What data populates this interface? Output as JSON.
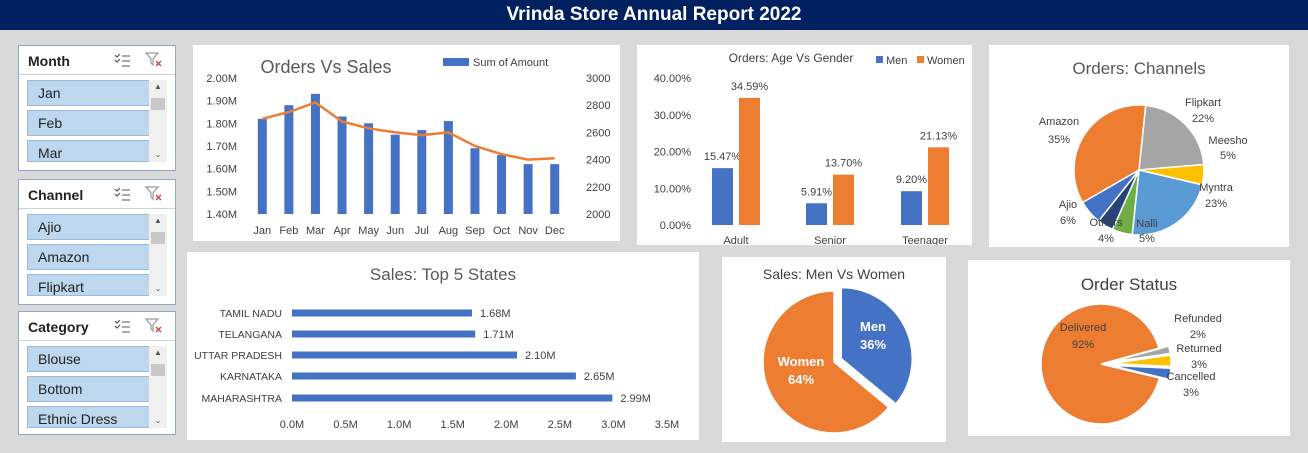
{
  "title": "Vrinda Store Annual Report 2022",
  "slicers": [
    {
      "header": "Month",
      "items": [
        "Jan",
        "Feb",
        "Mar"
      ]
    },
    {
      "header": "Channel",
      "items": [
        "Ajio",
        "Amazon",
        "Flipkart"
      ]
    },
    {
      "header": "Category",
      "items": [
        "Blouse",
        "Bottom",
        "Ethnic Dress"
      ]
    }
  ],
  "chart_data": [
    {
      "id": "orders_vs_sales",
      "type": "bar",
      "title": "Orders Vs Sales",
      "legend": "Sum of Amount",
      "legend_position": "top-right",
      "categories": [
        "Jan",
        "Feb",
        "Mar",
        "Apr",
        "May",
        "Jun",
        "Jul",
        "Aug",
        "Sep",
        "Oct",
        "Nov",
        "Dec"
      ],
      "series": [
        {
          "name": "Sum of Amount",
          "values": [
            1.82,
            1.88,
            1.93,
            1.83,
            1.8,
            1.75,
            1.77,
            1.81,
            1.69,
            1.66,
            1.62,
            1.62
          ],
          "color": "#4472c4",
          "axis": "left"
        },
        {
          "name": "",
          "type": "line",
          "values": [
            2700,
            2750,
            2820,
            2680,
            2630,
            2600,
            2580,
            2600,
            2500,
            2440,
            2400,
            2410
          ],
          "color": "#ed7d31",
          "axis": "right"
        }
      ],
      "left_ticks": [
        "1.40M",
        "1.50M",
        "1.60M",
        "1.70M",
        "1.80M",
        "1.90M",
        "2.00M"
      ],
      "right_ticks": [
        "2000",
        "2200",
        "2400",
        "2600",
        "2800",
        "3000"
      ],
      "ylim": [
        1.4,
        2.0
      ],
      "y2lim": [
        2000,
        3000
      ]
    },
    {
      "id": "age_vs_gender",
      "type": "bar",
      "title": "Orders: Age Vs Gender",
      "categories": [
        "Adult",
        "Senior",
        "Teenager"
      ],
      "series": [
        {
          "name": "Men",
          "values": [
            15.47,
            5.91,
            9.2
          ],
          "labels": [
            "15.47%",
            "5.91%",
            "9.20%"
          ],
          "color": "#4472c4"
        },
        {
          "name": "Women",
          "values": [
            34.59,
            13.7,
            21.13
          ],
          "labels": [
            "34.59%",
            "13.70%",
            "21.13%"
          ],
          "color": "#ed7d31"
        }
      ],
      "ticks": [
        "0.00%",
        "10.00%",
        "20.00%",
        "30.00%",
        "40.00%"
      ],
      "ylim": [
        0,
        40
      ]
    },
    {
      "id": "channels",
      "type": "pie",
      "title": "Orders: Channels",
      "slices": [
        {
          "name": "Amazon",
          "value": 35,
          "label": "35%",
          "color": "#ed7d31"
        },
        {
          "name": "Flipkart",
          "value": 22,
          "label": "22%",
          "color": "#a5a5a5"
        },
        {
          "name": "Meesho",
          "value": 5,
          "label": "5%",
          "color": "#ffc000"
        },
        {
          "name": "Myntra",
          "value": 23,
          "label": "23%",
          "color": "#5b9bd5"
        },
        {
          "name": "Nalli",
          "value": 5,
          "label": "5%",
          "color": "#70ad47"
        },
        {
          "name": "Others",
          "value": 4,
          "label": "4%",
          "color": "#264478"
        },
        {
          "name": "Ajio",
          "value": 6,
          "label": "6%",
          "color": "#4472c4"
        }
      ]
    },
    {
      "id": "top_states",
      "type": "bar",
      "orientation": "horizontal",
      "title": "Sales: Top 5 States",
      "categories": [
        "TAMIL NADU",
        "TELANGANA",
        "UTTAR PRADESH",
        "KARNATAKA",
        "MAHARASHTRA"
      ],
      "values": [
        1.68,
        1.71,
        2.1,
        2.65,
        2.99
      ],
      "labels": [
        "1.68M",
        "1.71M",
        "2.10M",
        "2.65M",
        "2.99M"
      ],
      "ticks": [
        "0.0M",
        "0.5M",
        "1.0M",
        "1.5M",
        "2.0M",
        "2.5M",
        "3.0M",
        "3.5M"
      ],
      "xlim": [
        0,
        3.5
      ],
      "color": "#4472c4"
    },
    {
      "id": "men_vs_women",
      "type": "pie",
      "title": "Sales: Men Vs Women",
      "slices": [
        {
          "name": "Men",
          "value": 36,
          "label": "36%",
          "color": "#4472c4"
        },
        {
          "name": "Women",
          "value": 64,
          "label": "64%",
          "color": "#ed7d31"
        }
      ]
    },
    {
      "id": "order_status",
      "type": "pie",
      "title": "Order Status",
      "slices": [
        {
          "name": "Delivered",
          "value": 92,
          "label": "92%",
          "color": "#ed7d31"
        },
        {
          "name": "Refunded",
          "value": 2,
          "label": "2%",
          "color": "#a5a5a5"
        },
        {
          "name": "Returned",
          "value": 3,
          "label": "3%",
          "color": "#ffc000"
        },
        {
          "name": "Cancelled",
          "value": 3,
          "label": "3%",
          "color": "#4472c4"
        }
      ]
    }
  ]
}
